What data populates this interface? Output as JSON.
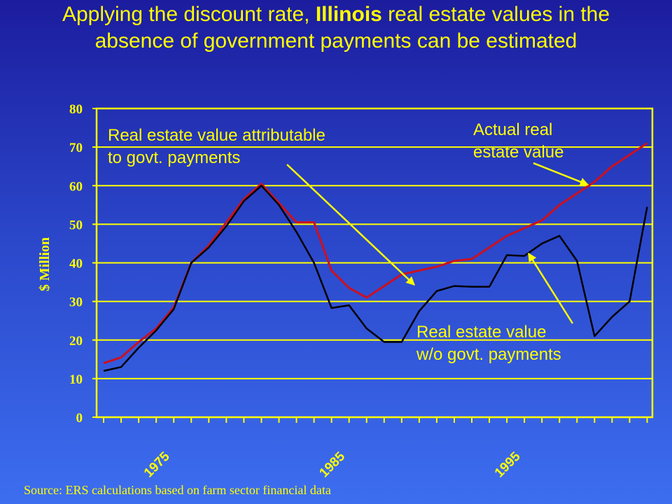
{
  "title": {
    "part1": "Applying the discount rate, ",
    "bold": "Illinois",
    "part2": " real estate values in the absence of government payments can be estimated"
  },
  "source": "Source: ERS calculations based on farm sector financial data",
  "colors": {
    "text": "#ffff00",
    "actual_line": "#cc1020",
    "wo_line": "#000000",
    "arrow": "#ffff00",
    "axis": "#ffff00"
  },
  "chart_data": {
    "type": "line",
    "ylabel": "$ Million",
    "ylim": [
      0,
      80
    ],
    "yticks": [
      0,
      10,
      20,
      30,
      40,
      50,
      60,
      70,
      80
    ],
    "xlim": [
      1970.6,
      2002.3
    ],
    "xtick_labels": [
      {
        "label": "1975",
        "x": 1975
      },
      {
        "label": "1985",
        "x": 1985
      },
      {
        "label": "1995",
        "x": 1995
      }
    ],
    "grid": "horizontal",
    "series": [
      {
        "key": "actual",
        "x": [
          1971,
          1972,
          1973,
          1974,
          1975,
          1976,
          1977,
          1978,
          1979,
          1980,
          1981,
          1982,
          1983,
          1984,
          1985,
          1986,
          1987,
          1988,
          1989,
          1990,
          1991,
          1992,
          1993,
          1994,
          1995,
          1996,
          1997,
          1998,
          1999,
          2000,
          2001,
          2002
        ],
        "values": [
          14,
          15.5,
          19.5,
          23,
          28.5,
          40,
          44.5,
          50.5,
          56.5,
          60.5,
          55.5,
          50.5,
          50.5,
          38,
          33.5,
          31,
          34,
          37,
          38,
          39,
          40.5,
          41,
          44,
          47,
          49,
          51,
          55,
          58,
          61,
          65,
          68,
          71
        ]
      },
      {
        "key": "wo_govt",
        "x": [
          1971,
          1972,
          1973,
          1974,
          1975,
          1976,
          1977,
          1978,
          1979,
          1980,
          1981,
          1982,
          1983,
          1984,
          1985,
          1986,
          1987,
          1988,
          1989,
          1990,
          1991,
          1992,
          1993,
          1994,
          1995,
          1996,
          1997,
          1998,
          1999,
          2000,
          2001,
          2002
        ],
        "values": [
          12,
          13,
          18,
          22.5,
          28,
          40,
          44,
          49.5,
          56,
          60,
          55,
          48,
          40,
          28.3,
          29,
          23,
          19.5,
          19.5,
          27.5,
          32.7,
          34,
          33.8,
          33.8,
          42,
          41.8,
          45,
          47,
          40.5,
          21,
          26,
          30,
          54.5
        ]
      }
    ],
    "annotations": [
      {
        "key": "attrib",
        "lines": [
          "Real estate value attributable",
          "to govt. payments"
        ]
      },
      {
        "key": "actual",
        "lines": [
          "Actual real",
          "estate value"
        ]
      },
      {
        "key": "wo",
        "lines": [
          "Real estate value",
          "w/o govt. payments"
        ]
      }
    ]
  }
}
